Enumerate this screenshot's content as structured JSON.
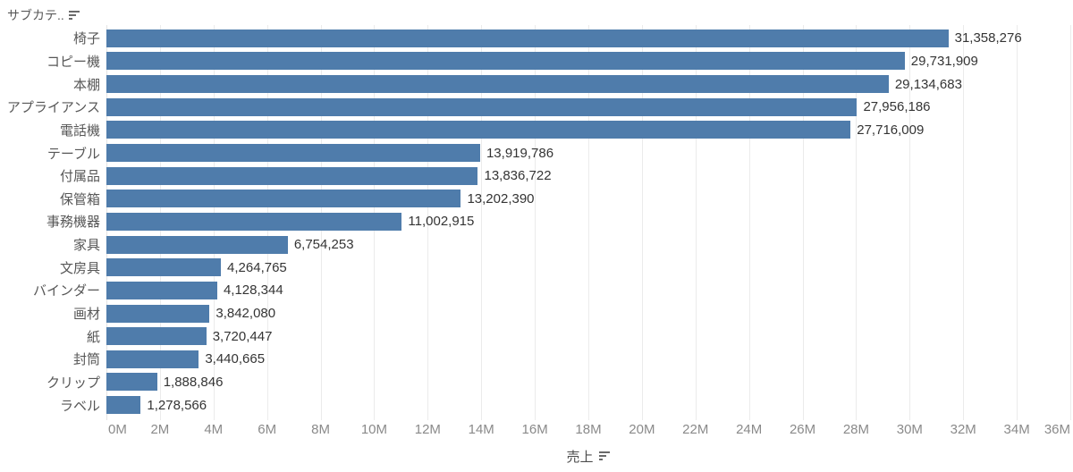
{
  "header": {
    "field_label": "サブカテ..",
    "sort_icon": "sort-descending-icon"
  },
  "axis": {
    "title": "売上",
    "sort_icon": "sort-descending-icon"
  },
  "colors": {
    "bar": "#4f7cab",
    "gridline": "#ebebeb",
    "category_label": "#575757",
    "value_label": "#343434",
    "tick_label": "#8a8a8a"
  },
  "chart_data": {
    "type": "bar",
    "orientation": "horizontal",
    "title": "",
    "xlabel": "売上",
    "ylabel": "サブカテ..",
    "categories": [
      "椅子",
      "コピー機",
      "本棚",
      "アプライアンス",
      "電話機",
      "テーブル",
      "付属品",
      "保管箱",
      "事務機器",
      "家具",
      "文房具",
      "バインダー",
      "画材",
      "紙",
      "封筒",
      "クリップ",
      "ラベル"
    ],
    "values": [
      31358276,
      29731909,
      29134683,
      27956186,
      27716009,
      13919786,
      13836722,
      13202390,
      11002915,
      6754253,
      4264765,
      4128344,
      3842080,
      3720447,
      3440665,
      1888846,
      1278566
    ],
    "value_labels": [
      "31,358,276",
      "29,731,909",
      "29,134,683",
      "27,956,186",
      "27,716,009",
      "13,919,786",
      "13,836,722",
      "13,202,390",
      "11,002,915",
      "6,754,253",
      "4,264,765",
      "4,128,344",
      "3,842,080",
      "3,720,447",
      "3,440,665",
      "1,888,846",
      "1,278,566"
    ],
    "xlim": [
      0,
      36000000
    ],
    "x_tick_values": [
      0,
      2000000,
      4000000,
      6000000,
      8000000,
      10000000,
      12000000,
      14000000,
      16000000,
      18000000,
      20000000,
      22000000,
      24000000,
      26000000,
      28000000,
      30000000,
      32000000,
      34000000,
      36000000
    ],
    "x_tick_labels": [
      "0M",
      "2M",
      "4M",
      "6M",
      "8M",
      "10M",
      "12M",
      "14M",
      "16M",
      "18M",
      "20M",
      "22M",
      "24M",
      "26M",
      "28M",
      "30M",
      "32M",
      "34M",
      "36M"
    ],
    "grid": "vertical-only",
    "legend": "none",
    "sort": "descending by value",
    "bar_color": "#4f7cab"
  }
}
